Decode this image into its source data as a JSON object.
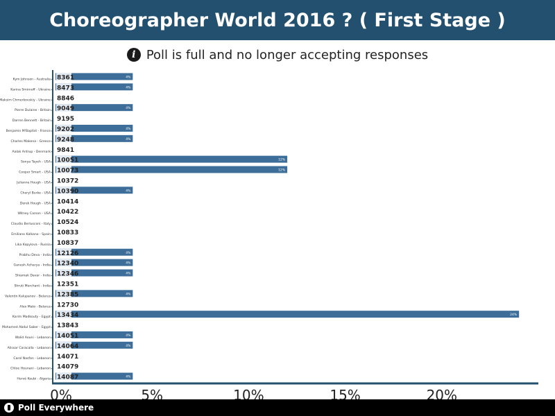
{
  "header": {
    "title": "Choreographer World 2016 ? ( First Stage )"
  },
  "notice": {
    "icon": "info-icon",
    "text": "Poll is full and no longer accepting responses"
  },
  "footer": {
    "brand": "Poll Everywhere",
    "icon": "poll-everywhere-logo-icon"
  },
  "colors": {
    "header_bg": "#23506f",
    "bar": "#3d6e99",
    "axis": "#23506f",
    "text": "#222222"
  },
  "chart_data": {
    "type": "bar",
    "orientation": "horizontal",
    "xlim": [
      0,
      25
    ],
    "xticks": [
      0,
      5,
      10,
      15,
      20
    ],
    "xtick_format": "{v}%",
    "grid": false,
    "categories": [
      "Kym Johnson - Australia",
      "Karina Smirnoff - Ukraine",
      "Maksim Chmerkovskiy - Ukraine",
      "Pierre Dulaine - Britain",
      "Darren Bennett - Britain",
      "Benjamin M'Baptist - France",
      "Charles Makena - Greece",
      "Aalak Ardrup - Denmark",
      "Sonya Tayeh - USA",
      "Cooper Smart - USA",
      "Julianne Hough - USA",
      "Cheryl Burke - USA",
      "Derek Hough - USA",
      "Witney Carson - USA",
      "Claudio Berlusconi - Italy",
      "Emiliano Kalkano - Spain",
      "Lika Kopylova - Russia",
      "Prabhu Deva - India",
      "Ganesh Acharya - India",
      "Shiamak Davar - India",
      "Shruti Merchant - India",
      "Valentin Kalupanov - Belarus",
      "Alex Mato - Belarus",
      "Karim Madkouty - Egypt",
      "Mohamed Abdul Saber - Egypt",
      "Walid Aouni - Lebanon",
      "Alissar Caracalla - Lebanon",
      "Carol Nasfan - Lebanon",
      "Chloe Hounani - Lebanon",
      "Hervé Koubi - Algeria"
    ],
    "codes": [
      "8361",
      "8473",
      "8846",
      "9049",
      "9195",
      "9202",
      "9248",
      "9841",
      "10051",
      "10073",
      "10372",
      "10390",
      "10414",
      "10422",
      "10524",
      "10833",
      "10837",
      "12126",
      "12340",
      "12346",
      "12351",
      "12385",
      "12730",
      "13434",
      "13843",
      "14051",
      "14064",
      "14071",
      "14079",
      "14087"
    ],
    "values": [
      4,
      4,
      0,
      4,
      0,
      4,
      4,
      0,
      12,
      12,
      0,
      4,
      0,
      0,
      0,
      0,
      0,
      4,
      4,
      4,
      0,
      4,
      0,
      24,
      0,
      4,
      4,
      0,
      0,
      4
    ],
    "value_labels": [
      "4%",
      "4%",
      "",
      "4%",
      "",
      "4%",
      "4%",
      "",
      "12%",
      "12%",
      "",
      "4%",
      "",
      "",
      "",
      "",
      "",
      "4%",
      "4%",
      "4%",
      "",
      "4%",
      "",
      "24%",
      "",
      "4%",
      "4%",
      "",
      "",
      "4%"
    ]
  }
}
